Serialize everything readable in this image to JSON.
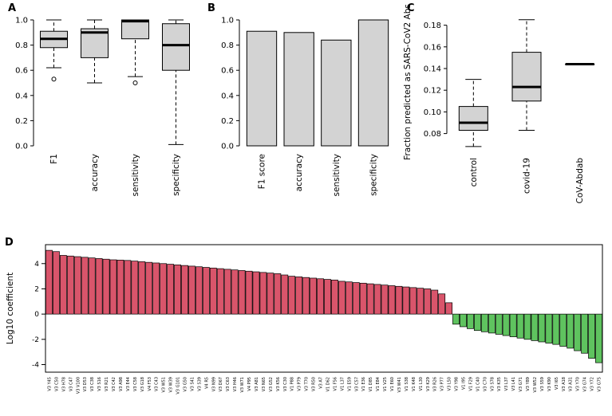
{
  "figure": {
    "background": "#ffffff",
    "panel_labels": {
      "A": "A",
      "B": "B",
      "C": "C",
      "D": "D"
    }
  },
  "chart_data": [
    {
      "id": "A",
      "type": "boxplot",
      "title": "",
      "ylabel": "",
      "ylim": [
        0,
        1.0
      ],
      "yticks": [
        0.0,
        0.2,
        0.4,
        0.6,
        0.8,
        1.0
      ],
      "yticklabels": [
        "0.0",
        "0.2",
        "0.4",
        "0.6",
        "0.8",
        "1.0"
      ],
      "categories": [
        "F1",
        "accuracy",
        "sensitivity",
        "specificity"
      ],
      "boxes": [
        {
          "low": 0.62,
          "q1": 0.78,
          "median": 0.85,
          "q3": 0.91,
          "high": 1.0,
          "outliers": [
            0.53
          ]
        },
        {
          "low": 0.5,
          "q1": 0.7,
          "median": 0.9,
          "q3": 0.93,
          "high": 1.0,
          "outliers": []
        },
        {
          "low": 0.55,
          "q1": 0.85,
          "median": 0.99,
          "q3": 1.0,
          "high": 1.0,
          "outliers": [
            0.5
          ]
        },
        {
          "low": 0.01,
          "q1": 0.6,
          "median": 0.8,
          "q3": 0.97,
          "high": 1.0,
          "outliers": []
        }
      ],
      "box_fill": "#d3d3d3",
      "grid": false
    },
    {
      "id": "B",
      "type": "bar",
      "title": "",
      "ylabel": "",
      "ylim": [
        0,
        1.0
      ],
      "yticks": [
        0.0,
        0.2,
        0.4,
        0.6,
        0.8,
        1.0
      ],
      "yticklabels": [
        "0.0",
        "0.2",
        "0.4",
        "0.6",
        "0.8",
        "1.0"
      ],
      "categories": [
        "F1 score",
        "accuracy",
        "sensitivity",
        "specificity"
      ],
      "values": [
        0.91,
        0.9,
        0.84,
        1.0
      ],
      "bar_fill": "#d3d3d3",
      "grid": false
    },
    {
      "id": "C",
      "type": "boxplot",
      "title": "",
      "ylabel": "Fraction predicted as SARS-CoV2 Abs",
      "ylim": [
        0.065,
        0.19
      ],
      "yticks": [
        0.08,
        0.1,
        0.12,
        0.14,
        0.16,
        0.18
      ],
      "yticklabels": [
        "0.08",
        "0.10",
        "0.12",
        "0.14",
        "0.16",
        "0.18"
      ],
      "categories": [
        "control",
        "covid-19",
        "CoV-Abdab"
      ],
      "boxes": [
        {
          "low": 0.068,
          "q1": 0.083,
          "median": 0.09,
          "q3": 0.105,
          "high": 0.13,
          "outliers": []
        },
        {
          "low": 0.083,
          "q1": 0.11,
          "median": 0.123,
          "q3": 0.155,
          "high": 0.185,
          "outliers": []
        },
        {
          "low": 0.144,
          "q1": 0.144,
          "median": 0.144,
          "q3": 0.144,
          "high": 0.144,
          "outliers": []
        }
      ],
      "box_fill": "#d3d3d3",
      "grid": false
    },
    {
      "id": "D",
      "type": "bar",
      "title": "",
      "ylabel": "Log10 coefficient",
      "ylim": [
        -4.6,
        5.5
      ],
      "yticks": [
        -4,
        -2,
        0,
        2,
        4
      ],
      "yticklabels": [
        "-4",
        "-2",
        "0",
        "2",
        "4"
      ],
      "positive_color": "#d9556b",
      "negative_color": "#5fc35f",
      "boxed": true,
      "grid": false,
      "categories": [
        "V3 Y45",
        "V3 C50",
        "V3 H78",
        "V3 C47",
        "V3 V100",
        "V3 D53",
        "V3 C38",
        "V3 S16",
        "V3 R21",
        "V3 C42",
        "V3 A98",
        "V3 E44",
        "V3 C58",
        "V3 G18",
        "V4 F53",
        "V3 C43",
        "V3 W51",
        "V3 W39",
        "V3 G101",
        "V3 G50",
        "V3 S41",
        "V3 S39",
        "V4 R5",
        "V3 N99",
        "V3 D67",
        "V3 C63",
        "V3 H46",
        "V3 W71",
        "V4 P95",
        "V3 A81",
        "V3 N65",
        "V3 G52",
        "V3 K56",
        "V3 C30",
        "V1 P88",
        "V3 P79",
        "V3 T70",
        "V3 R50",
        "V3 A7",
        "V1 D62",
        "V1 F56",
        "V1 L37",
        "V1 E59",
        "V3 C57",
        "V1 E36",
        "V1 D85",
        "V1 E84",
        "V1 V25",
        "V1 E60",
        "V3 W41",
        "V1 S38",
        "V1 K48",
        "V1 L30",
        "V3 K29",
        "V3 R26",
        "V3 P77",
        "V3 L50",
        "V3 Y98",
        "V1 I95",
        "V1 F29",
        "V1 C40",
        "V3 C70",
        "V3 S78",
        "V3 K35",
        "V3 L37",
        "V3 L41",
        "V3 G71",
        "V3 Y89",
        "V3 W52",
        "V3 S59",
        "V3 K90",
        "V3 I65",
        "V3 A18",
        "V3 A31",
        "V3 Y70",
        "V3 G74",
        "V3 Y72",
        "V3 G75"
      ],
      "values": [
        5.05,
        4.95,
        4.65,
        4.6,
        4.55,
        4.5,
        4.45,
        4.4,
        4.35,
        4.3,
        4.28,
        4.25,
        4.2,
        4.15,
        4.1,
        4.05,
        4.0,
        3.95,
        3.9,
        3.85,
        3.8,
        3.75,
        3.7,
        3.65,
        3.6,
        3.55,
        3.5,
        3.45,
        3.4,
        3.35,
        3.3,
        3.25,
        3.2,
        3.1,
        3.0,
        2.95,
        2.9,
        2.85,
        2.8,
        2.75,
        2.7,
        2.6,
        2.55,
        2.5,
        2.45,
        2.4,
        2.35,
        2.3,
        2.25,
        2.2,
        2.15,
        2.1,
        2.05,
        2.0,
        1.9,
        1.6,
        0.9,
        -0.8,
        -1.0,
        -1.15,
        -1.3,
        -1.4,
        -1.5,
        -1.6,
        -1.7,
        -1.8,
        -1.9,
        -2.0,
        -2.1,
        -2.2,
        -2.3,
        -2.4,
        -2.55,
        -2.7,
        -2.9,
        -3.1,
        -3.5,
        -3.85
      ]
    }
  ]
}
